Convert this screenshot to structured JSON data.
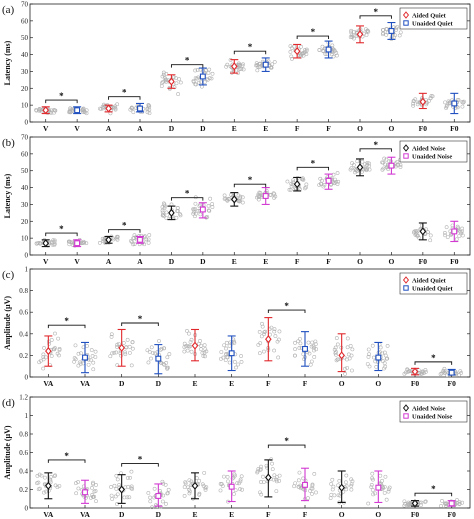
{
  "figure": {
    "title": ""
  },
  "colors": {
    "aided_quiet": "#e0282c",
    "unaided_quiet": "#1f4fbf",
    "aided_noise": "#111111",
    "unaided_noise": "#d23ad2",
    "scatter": "#b3b3b3"
  },
  "chart_data": [
    {
      "panel_label": "(a)",
      "type": "scatter",
      "ylabel": "Latency (ms)",
      "ylim": [
        0,
        70
      ],
      "yticks": [
        0,
        10,
        20,
        30,
        40,
        50,
        60,
        70
      ],
      "categories": [
        "V",
        "V",
        "A",
        "A",
        "D",
        "D",
        "E",
        "E",
        "F",
        "F",
        "O",
        "O",
        "F0",
        "F0"
      ],
      "legend": {
        "placement": "top-right",
        "entries": [
          "Aided Quiet",
          "Unaided Quiet"
        ]
      },
      "series": [
        {
          "name": "Aided Quiet",
          "color_key": "aided_quiet",
          "positions": [
            0,
            2,
            4,
            6,
            8,
            10,
            12
          ],
          "mean": [
            7,
            8,
            24,
            33,
            42,
            52,
            12
          ],
          "lower": [
            5,
            6,
            20,
            29,
            38,
            47,
            8
          ],
          "upper": [
            9,
            10,
            28,
            37,
            46,
            57,
            17
          ]
        },
        {
          "name": "Unaided Quiet",
          "color_key": "unaided_quiet",
          "positions": [
            1,
            3,
            5,
            7,
            9,
            11,
            13
          ],
          "mean": [
            7,
            8,
            27,
            34,
            43,
            54,
            11
          ],
          "lower": [
            5,
            6,
            22,
            30,
            38,
            49,
            5
          ],
          "upper": [
            9,
            11,
            32,
            38,
            48,
            59,
            17
          ]
        }
      ],
      "scatter_spread": [
        2,
        2,
        2.5,
        3,
        6,
        6,
        3,
        3,
        4,
        4,
        4,
        4,
        4,
        4
      ],
      "significance": [
        {
          "pair": [
            0,
            1
          ],
          "level": 13,
          "label": "*"
        },
        {
          "pair": [
            2,
            3
          ],
          "level": 15,
          "label": "*"
        },
        {
          "pair": [
            4,
            5
          ],
          "level": 34,
          "label": "*"
        },
        {
          "pair": [
            6,
            7
          ],
          "level": 42,
          "label": "*"
        },
        {
          "pair": [
            8,
            9
          ],
          "level": 51,
          "label": "*"
        },
        {
          "pair": [
            10,
            11
          ],
          "level": 63,
          "label": "*"
        }
      ]
    },
    {
      "panel_label": "(b)",
      "type": "scatter",
      "ylabel": "Latency (ms)",
      "ylim": [
        0,
        70
      ],
      "yticks": [
        0,
        10,
        20,
        30,
        40,
        50,
        60,
        70
      ],
      "categories": [
        "V",
        "V",
        "A",
        "A",
        "D",
        "D",
        "E",
        "E",
        "F",
        "F",
        "O",
        "O",
        "F0",
        "F0"
      ],
      "legend": {
        "placement": "top-right",
        "entries": [
          "Aided Noise",
          "Unaided Noise"
        ]
      },
      "series": [
        {
          "name": "Aided Noise",
          "color_key": "aided_noise",
          "positions": [
            0,
            2,
            4,
            6,
            8,
            10,
            12
          ],
          "mean": [
            7,
            9,
            25,
            33,
            42,
            52,
            14
          ],
          "lower": [
            5,
            7,
            21,
            29,
            38,
            47,
            9
          ],
          "upper": [
            9,
            11,
            29,
            37,
            46,
            57,
            19
          ]
        },
        {
          "name": "Unaided Noise",
          "color_key": "unaided_noise",
          "positions": [
            1,
            3,
            5,
            7,
            9,
            11,
            13
          ],
          "mean": [
            7,
            9,
            27,
            35,
            44,
            53,
            14
          ],
          "lower": [
            5,
            7,
            22,
            30,
            39,
            48,
            8
          ],
          "upper": [
            9,
            11,
            31,
            40,
            48,
            58,
            20
          ]
        }
      ],
      "scatter_spread": [
        2,
        2,
        2.5,
        3,
        6,
        6,
        3,
        3,
        4,
        4,
        4,
        4,
        4,
        4
      ],
      "significance": [
        {
          "pair": [
            0,
            1
          ],
          "level": 13,
          "label": "*"
        },
        {
          "pair": [
            2,
            3
          ],
          "level": 15,
          "label": "*"
        },
        {
          "pair": [
            4,
            5
          ],
          "level": 34,
          "label": "*"
        },
        {
          "pair": [
            6,
            7
          ],
          "level": 42,
          "label": "*"
        },
        {
          "pair": [
            8,
            9
          ],
          "level": 52,
          "label": "*"
        },
        {
          "pair": [
            10,
            11
          ],
          "level": 63,
          "label": "*"
        }
      ]
    },
    {
      "panel_label": "(c)",
      "type": "scatter",
      "ylabel": "Amplitude (µV)",
      "ylim": [
        0,
        1
      ],
      "yticks": [
        0,
        0.2,
        0.4,
        0.6,
        0.8,
        1
      ],
      "categories": [
        "VA",
        "VA",
        "D",
        "D",
        "E",
        "E",
        "F",
        "F",
        "O",
        "O",
        "F0",
        "F0"
      ],
      "legend": {
        "placement": "top-right",
        "entries": [
          "Aided Quiet",
          "Unaided Quiet"
        ]
      },
      "series": [
        {
          "name": "Aided Quiet",
          "color_key": "aided_quiet",
          "positions": [
            0,
            2,
            4,
            6,
            8,
            10
          ],
          "mean": [
            0.24,
            0.27,
            0.29,
            0.35,
            0.2,
            0.05
          ],
          "lower": [
            0.1,
            0.1,
            0.15,
            0.15,
            0.05,
            0.02
          ],
          "upper": [
            0.38,
            0.44,
            0.44,
            0.55,
            0.4,
            0.08
          ]
        },
        {
          "name": "Unaided Quiet",
          "color_key": "unaided_quiet",
          "positions": [
            1,
            3,
            5,
            7,
            9,
            11
          ],
          "mean": [
            0.18,
            0.17,
            0.22,
            0.26,
            0.18,
            0.04
          ],
          "lower": [
            0.04,
            0.03,
            0.06,
            0.1,
            0.06,
            0.02
          ],
          "upper": [
            0.32,
            0.3,
            0.38,
            0.42,
            0.32,
            0.07
          ]
        }
      ],
      "scatter_spread": [
        0.14,
        0.14,
        0.16,
        0.14,
        0.15,
        0.15,
        0.2,
        0.15,
        0.15,
        0.13,
        0.03,
        0.03
      ],
      "significance": [
        {
          "pair": [
            0,
            1
          ],
          "level": 0.48,
          "label": "*"
        },
        {
          "pair": [
            2,
            3
          ],
          "level": 0.5,
          "label": "*"
        },
        {
          "pair": [
            6,
            7
          ],
          "level": 0.62,
          "label": "*"
        },
        {
          "pair": [
            10,
            11
          ],
          "level": 0.14,
          "label": "*"
        }
      ]
    },
    {
      "panel_label": "(d)",
      "type": "scatter",
      "ylabel": "Amplitude (µV)",
      "ylim": [
        0,
        1.2
      ],
      "yticks": [
        0,
        0.2,
        0.4,
        0.6,
        0.8,
        1,
        1.2
      ],
      "categories": [
        "VA",
        "VA",
        "D",
        "D",
        "E",
        "E",
        "F",
        "F",
        "O",
        "O",
        "F0",
        "F0"
      ],
      "legend": {
        "placement": "top-right",
        "entries": [
          "Aided Noise",
          "Unaided Noise"
        ]
      },
      "series": [
        {
          "name": "Aided Noise",
          "color_key": "aided_noise",
          "positions": [
            0,
            2,
            4,
            6,
            8,
            10
          ],
          "mean": [
            0.24,
            0.2,
            0.24,
            0.33,
            0.22,
            0.05
          ],
          "lower": [
            0.1,
            0.05,
            0.1,
            0.12,
            0.06,
            0.02
          ],
          "upper": [
            0.38,
            0.36,
            0.38,
            0.52,
            0.4,
            0.08
          ]
        },
        {
          "name": "Unaided Noise",
          "color_key": "unaided_noise",
          "positions": [
            1,
            3,
            5,
            7,
            9,
            11
          ],
          "mean": [
            0.17,
            0.13,
            0.23,
            0.25,
            0.22,
            0.05
          ],
          "lower": [
            0.05,
            0.02,
            0.07,
            0.08,
            0.06,
            0.02
          ],
          "upper": [
            0.3,
            0.26,
            0.4,
            0.43,
            0.4,
            0.08
          ]
        }
      ],
      "scatter_spread": [
        0.14,
        0.14,
        0.16,
        0.14,
        0.15,
        0.15,
        0.22,
        0.17,
        0.15,
        0.15,
        0.03,
        0.03
      ],
      "significance": [
        {
          "pair": [
            0,
            1
          ],
          "level": 0.52,
          "label": "*"
        },
        {
          "pair": [
            2,
            3
          ],
          "level": 0.48,
          "label": "*"
        },
        {
          "pair": [
            6,
            7
          ],
          "level": 0.68,
          "label": "*"
        },
        {
          "pair": [
            10,
            11
          ],
          "level": 0.16,
          "label": "*"
        }
      ]
    }
  ]
}
